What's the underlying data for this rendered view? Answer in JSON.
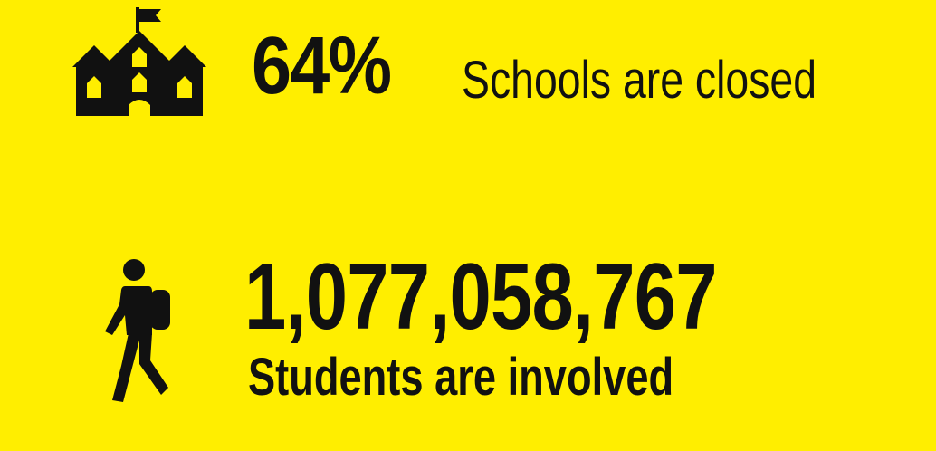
{
  "background_color": "#ffee00",
  "text_color": "#111111",
  "schools": {
    "icon": "school-building-icon",
    "percent": "64%",
    "label": "Schools are closed"
  },
  "students": {
    "icon": "student-walking-icon",
    "count": "1,077,058,767",
    "label": "Students are involved"
  }
}
